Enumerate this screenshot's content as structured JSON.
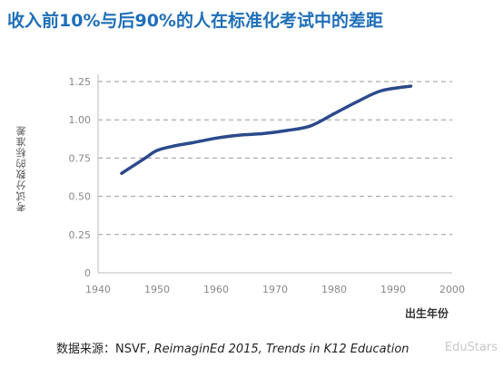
{
  "title": "收入前10%与后90%的人在标准化考试中的差距",
  "chart_data": {
    "type": "line",
    "title": "收入前10%与后90%的人在标准化考试中的差距",
    "xlabel": "出生年份",
    "ylabel": "考试分数的标准差",
    "xlim": [
      1940,
      2000
    ],
    "ylim": [
      0,
      1.25
    ],
    "x_ticks": [
      "1940",
      "1950",
      "1960",
      "1970",
      "1980",
      "1990",
      "2000"
    ],
    "y_ticks": [
      "0",
      "0.25",
      "0.50",
      "0.75",
      "1.00",
      "1.25"
    ],
    "grid": "horizontal-dashed",
    "series": [
      {
        "color": "#2b4a8c",
        "x": [
          1944,
          1946,
          1948,
          1950,
          1953,
          1956,
          1960,
          1964,
          1968,
          1972,
          1976,
          1980,
          1984,
          1988,
          1993
        ],
        "y": [
          0.65,
          0.7,
          0.75,
          0.8,
          0.83,
          0.85,
          0.88,
          0.9,
          0.91,
          0.93,
          0.96,
          1.04,
          1.12,
          1.19,
          1.22
        ]
      }
    ]
  },
  "source": {
    "prefix": "数据来源：NSVF, ",
    "italic": "ReimaginEd  2015, Trends in K12 Education"
  },
  "watermark": "EduStars"
}
